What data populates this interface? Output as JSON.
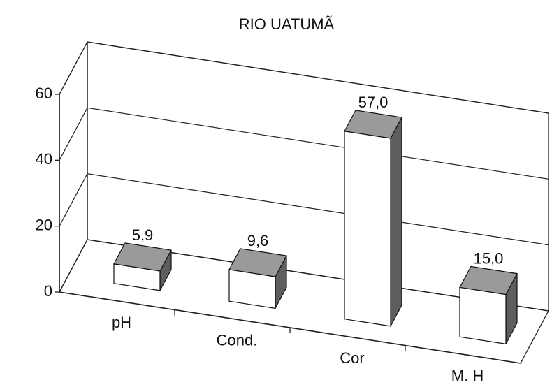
{
  "chart_data": {
    "type": "bar3d",
    "title": "RIO UATUMÃ",
    "categories": [
      "pH",
      "Cond.",
      "Cor",
      "M. H"
    ],
    "values": [
      5.9,
      9.6,
      57.0,
      15.0
    ],
    "value_labels": [
      "5,9",
      "9,6",
      "57,0",
      "15,0"
    ],
    "ylim": [
      0,
      60
    ],
    "yticks": [
      0,
      20,
      40,
      60
    ],
    "grid": true,
    "colors": {
      "front": "#ffffff",
      "top": "#9a9a9a",
      "side": "#5e5e5e"
    }
  }
}
